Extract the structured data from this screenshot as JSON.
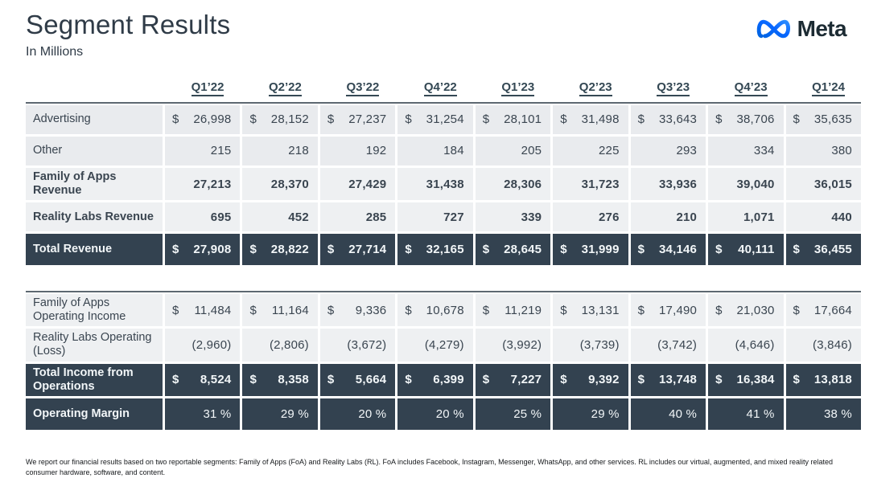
{
  "header": {
    "title": "Segment Results",
    "subtitle": "In Millions",
    "logo_text": "Meta"
  },
  "quarters": [
    "Q1’22",
    "Q2’22",
    "Q3’22",
    "Q4’22",
    "Q1’23",
    "Q2’23",
    "Q3’23",
    "Q4’23",
    "Q1’24"
  ],
  "revenue_table": {
    "rows": [
      {
        "label": "Advertising",
        "variant": "light",
        "bold": false,
        "dollar": true,
        "values": [
          "26,998",
          "28,152",
          "27,237",
          "31,254",
          "28,101",
          "31,498",
          "33,643",
          "38,706",
          "35,635"
        ]
      },
      {
        "label": "Other",
        "variant": "light",
        "bold": false,
        "dollar": false,
        "values": [
          "215",
          "218",
          "192",
          "184",
          "205",
          "225",
          "293",
          "334",
          "380"
        ]
      },
      {
        "label": "Family of Apps Revenue",
        "variant": "lighter",
        "bold": true,
        "dollar": false,
        "values": [
          "27,213",
          "28,370",
          "27,429",
          "31,438",
          "28,306",
          "31,723",
          "33,936",
          "39,040",
          "36,015"
        ]
      },
      {
        "label": "Reality Labs Revenue",
        "variant": "lighter",
        "bold": true,
        "dollar": false,
        "values": [
          "695",
          "452",
          "285",
          "727",
          "339",
          "276",
          "210",
          "1,071",
          "440"
        ]
      },
      {
        "label": "Total Revenue",
        "variant": "dark",
        "bold": true,
        "dollar": true,
        "values": [
          "27,908",
          "28,822",
          "27,714",
          "32,165",
          "28,645",
          "31,999",
          "34,146",
          "40,111",
          "36,455"
        ]
      }
    ]
  },
  "income_table": {
    "rows": [
      {
        "label": "Family of Apps Operating Income",
        "variant": "lighter",
        "bold": false,
        "dollar": true,
        "values": [
          "11,484",
          "11,164",
          "9,336",
          "10,678",
          "11,219",
          "13,131",
          "17,490",
          "21,030",
          "17,664"
        ]
      },
      {
        "label": "Reality Labs Operating (Loss)",
        "variant": "lighter",
        "bold": false,
        "dollar": false,
        "values": [
          "(2,960)",
          "(2,806)",
          "(3,672)",
          "(4,279)",
          "(3,992)",
          "(3,739)",
          "(3,742)",
          "(4,646)",
          "(3,846)"
        ]
      },
      {
        "label": "Total Income from Operations",
        "variant": "dark",
        "bold": true,
        "dollar": true,
        "values": [
          "8,524",
          "8,358",
          "5,664",
          "6,399",
          "7,227",
          "9,392",
          "13,748",
          "16,384",
          "13,818"
        ]
      },
      {
        "label": "Operating Margin",
        "variant": "dark",
        "bold": false,
        "label_bold": true,
        "dollar": false,
        "values": [
          "31 %",
          "29 %",
          "20 %",
          "20 %",
          "25 %",
          "29 %",
          "40 %",
          "41 %",
          "38 %"
        ]
      }
    ]
  },
  "footnote": "We report our financial results based on two reportable segments: Family of Apps (FoA) and Reality Labs (RL). FoA includes Facebook, Instagram, Messenger, WhatsApp, and other services. RL includes our virtual, augmented, and mixed reality related consumer hardware, software, and content.",
  "colors": {
    "dark_row": "#334250",
    "light_row": "#e9ebee",
    "lighter_row": "#eef0f2",
    "header_text": "#344854",
    "logo_blue": "#0866ff",
    "logo_blue_dark": "#0064e0"
  }
}
